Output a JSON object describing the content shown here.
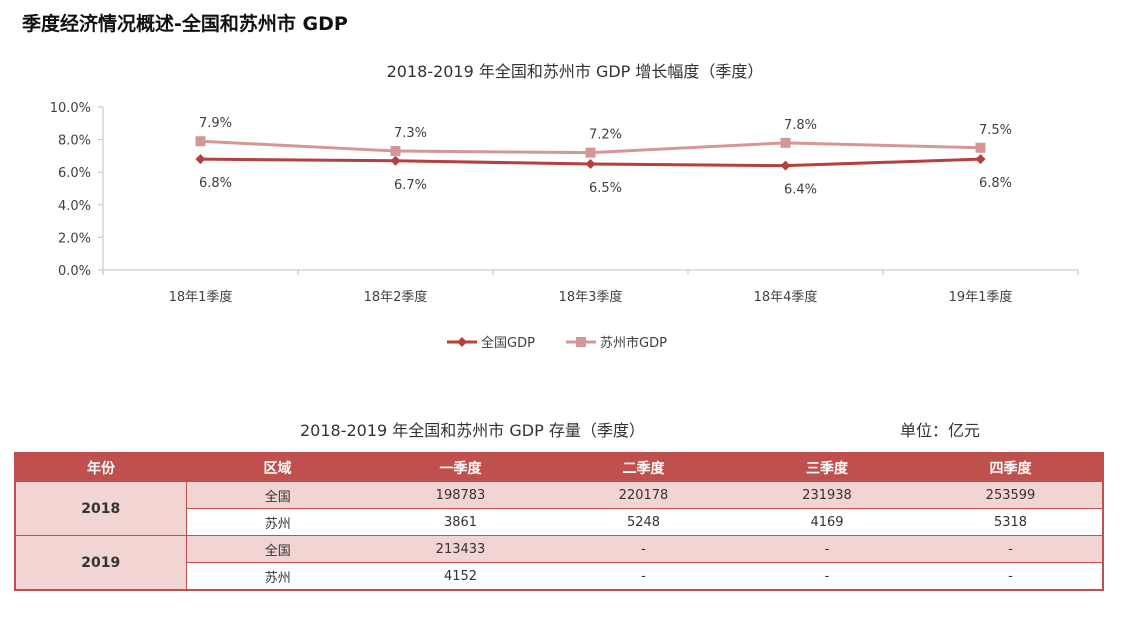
{
  "page": {
    "title": "季度经济情况概述-全国和苏州市 GDP"
  },
  "chart_data": {
    "type": "line",
    "title": "2018-2019 年全国和苏州市 GDP 增长幅度（季度）",
    "categories": [
      "18年1季度",
      "18年2季度",
      "18年3季度",
      "18年4季度",
      "19年1季度"
    ],
    "y_ticks": [
      "0.0%",
      "2.0%",
      "4.0%",
      "6.0%",
      "8.0%",
      "10.0%"
    ],
    "ylim": [
      0,
      10
    ],
    "grid": false,
    "legend_position": "bottom",
    "series": [
      {
        "name": "全国GDP",
        "values": [
          6.8,
          6.7,
          6.5,
          6.4,
          6.8
        ],
        "labels": [
          "6.8%",
          "6.7%",
          "6.5%",
          "6.4%",
          "6.8%"
        ],
        "color": "#b5403d",
        "marker": "diamond"
      },
      {
        "name": "苏州市GDP",
        "values": [
          7.9,
          7.3,
          7.2,
          7.8,
          7.5
        ],
        "labels": [
          "7.9%",
          "7.3%",
          "7.2%",
          "7.8%",
          "7.5%"
        ],
        "color": "#d49795",
        "marker": "square"
      }
    ]
  },
  "table": {
    "title": "2018-2019 年全国和苏州市 GDP 存量（季度）",
    "unit": "单位：亿元",
    "headers": [
      "年份",
      "区域",
      "一季度",
      "二季度",
      "三季度",
      "四季度"
    ],
    "groups": [
      {
        "year": "2018",
        "rows": [
          {
            "region": "全国",
            "values": [
              "198783",
              "220178",
              "231938",
              "253599"
            ]
          },
          {
            "region": "苏州",
            "values": [
              "3861",
              "5248",
              "4169",
              "5318"
            ]
          }
        ]
      },
      {
        "year": "2019",
        "rows": [
          {
            "region": "全国",
            "values": [
              "213433",
              "-",
              "-",
              "-"
            ]
          },
          {
            "region": "苏州",
            "values": [
              "4152",
              "-",
              "-",
              "-"
            ]
          }
        ]
      }
    ]
  },
  "colors": {
    "accent": "#c0504d",
    "row_tint": "#f2d4d3"
  }
}
